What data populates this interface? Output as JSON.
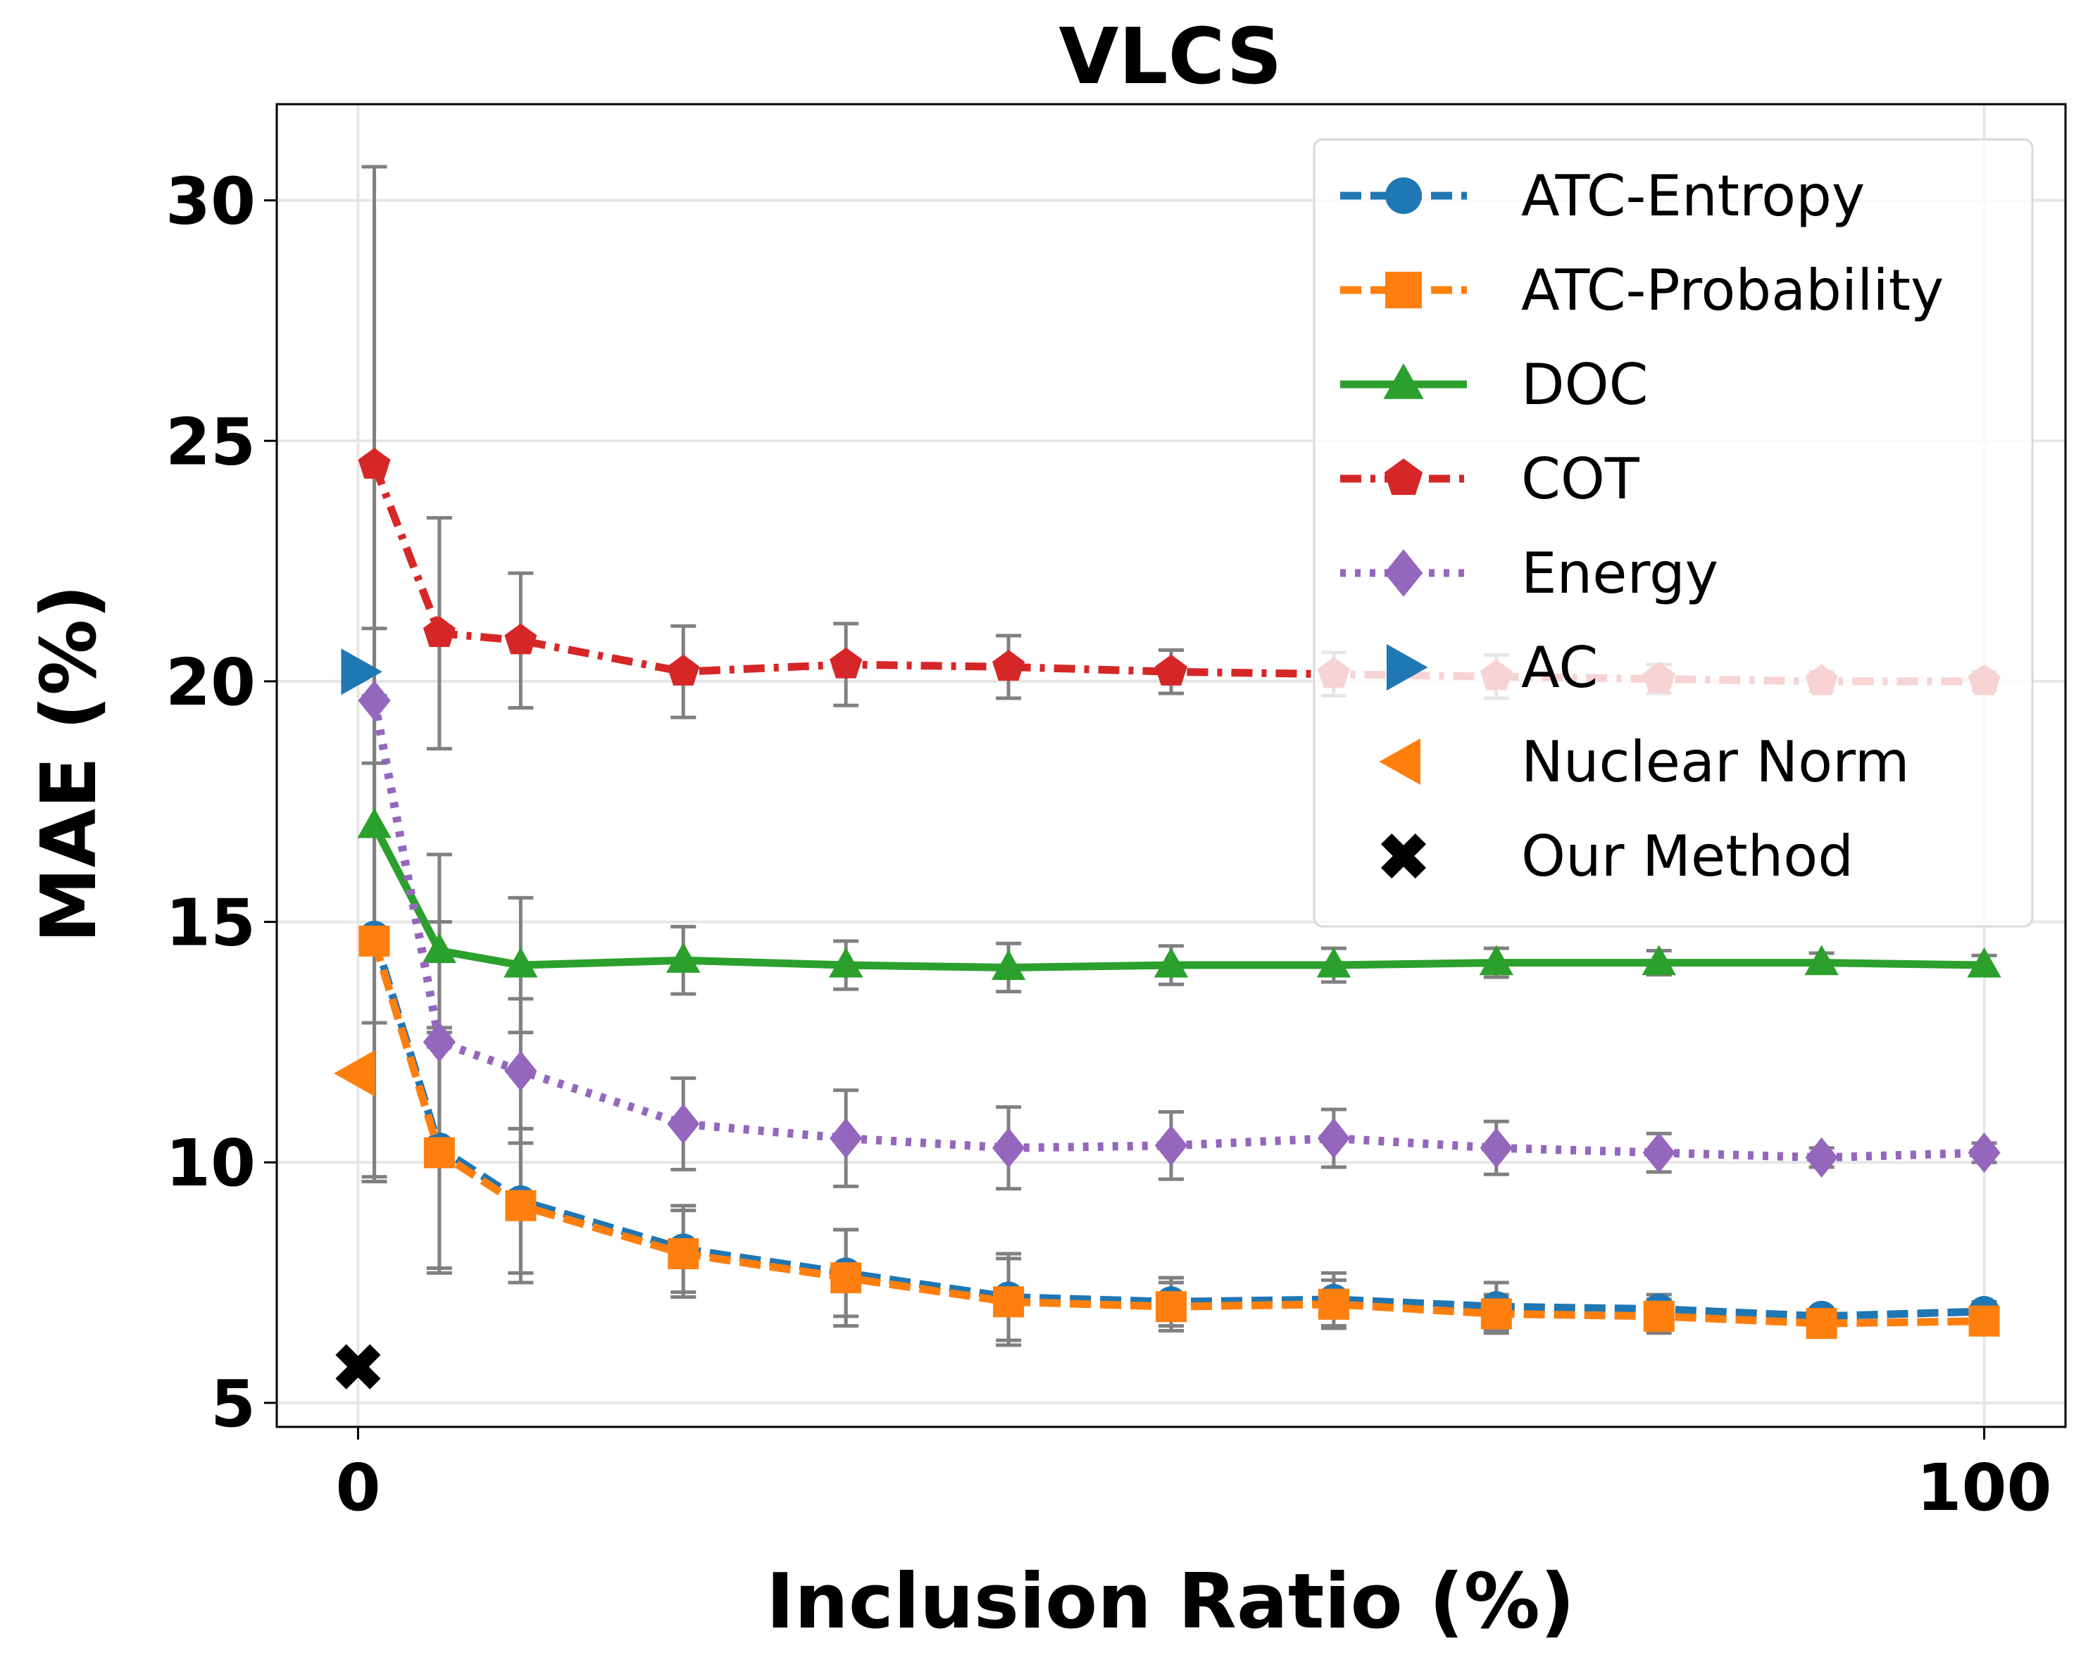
{
  "chart_data": {
    "type": "line",
    "title": "VLCS",
    "xlabel": "Inclusion Ratio (%)",
    "ylabel": "MAE (%)",
    "xlim": [
      -5,
      105
    ],
    "ylim": [
      4.5,
      32
    ],
    "xticks": [
      0,
      100
    ],
    "xtick_labels": [
      "0",
      "100"
    ],
    "yticks": [
      5,
      10,
      15,
      20,
      25,
      30
    ],
    "ytick_labels": [
      "5",
      "10",
      "15",
      "20",
      "25",
      "30"
    ],
    "grid": true,
    "legend_position": "top-right",
    "x": [
      1,
      5,
      10,
      20,
      30,
      40,
      50,
      60,
      70,
      80,
      90,
      100
    ],
    "series": [
      {
        "name": "ATC-Entropy",
        "color": "#1f77b4",
        "marker": "circle",
        "linestyle": "dashed",
        "values": [
          14.7,
          10.3,
          9.2,
          8.2,
          7.7,
          7.2,
          7.1,
          7.15,
          7.0,
          6.95,
          6.8,
          6.9
        ],
        "errors": [
          5.0,
          2.5,
          1.5,
          0.9,
          0.9,
          0.9,
          0.5,
          0.55,
          0.5,
          0.3,
          0.15,
          0.2
        ]
      },
      {
        "name": "ATC-Probability",
        "color": "#ff7f0e",
        "marker": "square",
        "linestyle": "dashed",
        "values": [
          14.6,
          10.2,
          9.1,
          8.1,
          7.6,
          7.1,
          7.0,
          7.05,
          6.85,
          6.8,
          6.65,
          6.7
        ],
        "errors": [
          5.0,
          2.5,
          1.6,
          0.9,
          1.0,
          0.9,
          0.5,
          0.5,
          0.4,
          0.35,
          0.15,
          0.2
        ]
      },
      {
        "name": "DOC",
        "color": "#2ca02c",
        "marker": "triangle-up",
        "linestyle": "solid",
        "values": [
          17.0,
          14.4,
          14.1,
          14.2,
          14.1,
          14.05,
          14.1,
          14.1,
          14.15,
          14.15,
          14.15,
          14.1
        ],
        "errors": [
          4.1,
          2.0,
          1.4,
          0.7,
          0.5,
          0.5,
          0.4,
          0.35,
          0.3,
          0.25,
          0.2,
          0.2
        ]
      },
      {
        "name": "COT",
        "color": "#d62728",
        "marker": "pentagon",
        "linestyle": "dashdot",
        "values": [
          24.5,
          21.0,
          20.85,
          20.2,
          20.35,
          20.3,
          20.2,
          20.15,
          20.1,
          20.05,
          20.0,
          20.0
        ],
        "errors": [
          6.2,
          2.4,
          1.4,
          0.95,
          0.85,
          0.65,
          0.45,
          0.45,
          0.45,
          0.3,
          0.2,
          0.2
        ]
      },
      {
        "name": "Energy",
        "color": "#9467bd",
        "marker": "diamond",
        "linestyle": "dotted",
        "values": [
          19.6,
          12.5,
          11.9,
          10.8,
          10.5,
          10.3,
          10.35,
          10.5,
          10.3,
          10.2,
          10.1,
          10.2
        ],
        "errors": [
          5.0,
          2.5,
          1.5,
          0.95,
          1.0,
          0.85,
          0.7,
          0.6,
          0.55,
          0.4,
          0.2,
          0.2
        ]
      }
    ],
    "points": [
      {
        "name": "AC",
        "color": "#1f77b4",
        "marker": "triangle-right",
        "x": 0,
        "y": 20.2
      },
      {
        "name": "Nuclear Norm",
        "color": "#ff7f0e",
        "marker": "triangle-left",
        "x": 0,
        "y": 11.85
      },
      {
        "name": "Our Method",
        "color": "#000000",
        "marker": "x-filled",
        "x": 0,
        "y": 5.75
      }
    ],
    "legend": [
      {
        "label": "ATC-Entropy",
        "color": "#1f77b4",
        "marker": "circle",
        "linestyle": "dashed"
      },
      {
        "label": "ATC-Probability",
        "color": "#ff7f0e",
        "marker": "square",
        "linestyle": "dashed"
      },
      {
        "label": "DOC",
        "color": "#2ca02c",
        "marker": "triangle-up",
        "linestyle": "solid"
      },
      {
        "label": "COT",
        "color": "#d62728",
        "marker": "pentagon",
        "linestyle": "dashdot"
      },
      {
        "label": "Energy",
        "color": "#9467bd",
        "marker": "diamond",
        "linestyle": "dotted"
      },
      {
        "label": "AC",
        "color": "#1f77b4",
        "marker": "triangle-right",
        "linestyle": "none"
      },
      {
        "label": "Nuclear Norm",
        "color": "#ff7f0e",
        "marker": "triangle-left",
        "linestyle": "none"
      },
      {
        "label": "Our Method",
        "color": "#000000",
        "marker": "x-filled",
        "linestyle": "none"
      }
    ]
  }
}
